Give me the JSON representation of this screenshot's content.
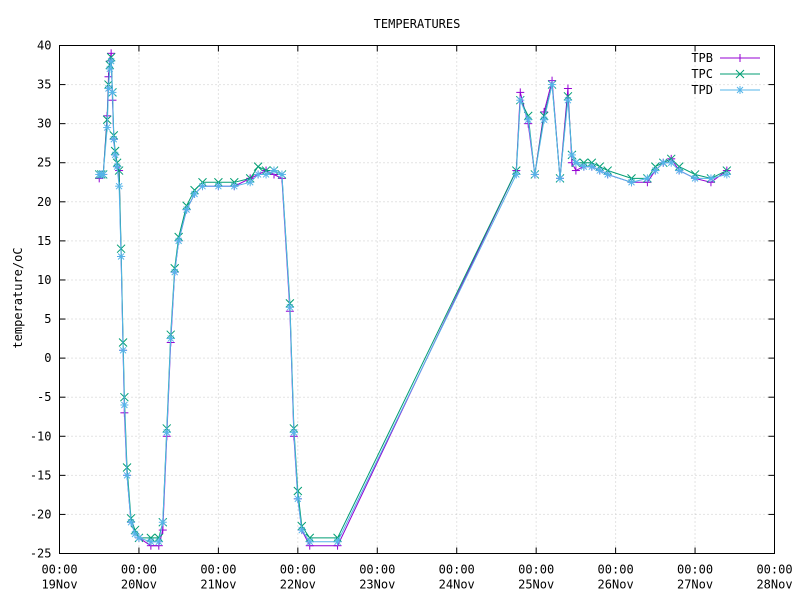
{
  "chart_data": {
    "type": "line",
    "title": "TEMPERATURES",
    "xlabel": "",
    "ylabel": "temperature/oC",
    "xlim": [
      "2000-11-19 00:00",
      "2000-11-28 00:00"
    ],
    "ylim": [
      -25,
      40
    ],
    "x_ticks": [
      {
        "time": "19Nov 00:00",
        "top": "00:00",
        "bottom": "19Nov"
      },
      {
        "time": "20Nov 00:00",
        "top": "00:00",
        "bottom": "20Nov"
      },
      {
        "time": "21Nov 00:00",
        "top": "00:00",
        "bottom": "21Nov"
      },
      {
        "time": "22Nov 00:00",
        "top": "00:00",
        "bottom": "22Nov"
      },
      {
        "time": "23Nov 00:00",
        "top": "00:00",
        "bottom": "23Nov"
      },
      {
        "time": "24Nov 00:00",
        "top": "00:00",
        "bottom": "24Nov"
      },
      {
        "time": "25Nov 00:00",
        "top": "00:00",
        "bottom": "25Nov"
      },
      {
        "time": "26Nov 00:00",
        "top": "00:00",
        "bottom": "26Nov"
      },
      {
        "time": "27Nov 00:00",
        "top": "00:00",
        "bottom": "27Nov"
      },
      {
        "time": "28Nov 00:00",
        "top": "00:00",
        "bottom": "28Nov"
      }
    ],
    "y_ticks": [
      -25,
      -20,
      -15,
      -10,
      -5,
      0,
      5,
      10,
      15,
      20,
      25,
      30,
      35,
      40
    ],
    "grid": true,
    "legend_position": "top-right",
    "series": [
      {
        "name": "TPB",
        "color": "#9400d3",
        "marker": "plus",
        "points": [
          [
            "2000-11-19 12:00",
            23.0
          ],
          [
            "2000-11-19 12:36",
            23.5
          ],
          [
            "2000-11-19 13:12",
            23.5
          ],
          [
            "2000-11-19 14:24",
            31.0
          ],
          [
            "2000-11-19 14:48",
            36.0
          ],
          [
            "2000-11-19 15:12",
            38.0
          ],
          [
            "2000-11-19 15:36",
            39.0
          ],
          [
            "2000-11-19 16:00",
            33.0
          ],
          [
            "2000-11-19 16:24",
            28.0
          ],
          [
            "2000-11-19 16:48",
            26.0
          ],
          [
            "2000-11-19 17:24",
            24.5
          ],
          [
            "2000-11-19 18:00",
            24.0
          ],
          [
            "2000-11-19 18:36",
            13.0
          ],
          [
            "2000-11-19 19:12",
            1.0
          ],
          [
            "2000-11-19 19:36",
            -7.0
          ],
          [
            "2000-11-19 20:24",
            -15.0
          ],
          [
            "2000-11-19 21:36",
            -21.0
          ],
          [
            "2000-11-19 22:48",
            -22.5
          ],
          [
            "2000-11-20 00:00",
            -23.0
          ],
          [
            "2000-11-20 03:36",
            -24.0
          ],
          [
            "2000-11-20 06:00",
            -24.0
          ],
          [
            "2000-11-20 07:12",
            -22.0
          ],
          [
            "2000-11-20 08:24",
            -10.0
          ],
          [
            "2000-11-20 09:36",
            2.0
          ],
          [
            "2000-11-20 10:48",
            11.0
          ],
          [
            "2000-11-20 12:00",
            15.0
          ],
          [
            "2000-11-20 14:24",
            19.0
          ],
          [
            "2000-11-20 16:48",
            21.0
          ],
          [
            "2000-11-20 19:12",
            22.0
          ],
          [
            "2000-11-21 00:00",
            22.0
          ],
          [
            "2000-11-21 04:48",
            22.0
          ],
          [
            "2000-11-21 09:36",
            23.0
          ],
          [
            "2000-11-21 12:00",
            23.5
          ],
          [
            "2000-11-21 14:24",
            24.0
          ],
          [
            "2000-11-21 16:48",
            23.5
          ],
          [
            "2000-11-21 19:12",
            23.0
          ],
          [
            "2000-11-21 21:36",
            6.0
          ],
          [
            "2000-11-21 22:48",
            -10.0
          ],
          [
            "2000-11-22 00:00",
            -18.0
          ],
          [
            "2000-11-22 01:12",
            -22.0
          ],
          [
            "2000-11-22 03:36",
            -24.0
          ],
          [
            "2000-11-22 12:00",
            -24.0
          ],
          [
            "2000-11-24 18:00",
            24.0
          ],
          [
            "2000-11-24 19:12",
            34.0
          ],
          [
            "2000-11-24 21:36",
            30.0
          ],
          [
            "2000-11-24 23:36",
            23.5
          ],
          [
            "2000-11-25 02:24",
            31.5
          ],
          [
            "2000-11-25 04:48",
            35.5
          ],
          [
            "2000-11-25 07:12",
            23.0
          ],
          [
            "2000-11-25 09:36",
            34.5
          ],
          [
            "2000-11-25 10:48",
            25.0
          ],
          [
            "2000-11-25 12:00",
            24.0
          ],
          [
            "2000-11-25 14:24",
            24.5
          ],
          [
            "2000-11-25 16:48",
            24.5
          ],
          [
            "2000-11-25 19:12",
            24.0
          ],
          [
            "2000-11-25 21:36",
            23.5
          ],
          [
            "2000-11-26 04:48",
            22.5
          ],
          [
            "2000-11-26 09:36",
            22.5
          ],
          [
            "2000-11-26 12:00",
            24.0
          ],
          [
            "2000-11-26 14:24",
            25.0
          ],
          [
            "2000-11-26 16:48",
            25.5
          ],
          [
            "2000-11-26 19:12",
            24.0
          ],
          [
            "2000-11-27 00:00",
            23.0
          ],
          [
            "2000-11-27 04:48",
            22.5
          ],
          [
            "2000-11-27 09:36",
            24.0
          ]
        ]
      },
      {
        "name": "TPC",
        "color": "#009e73",
        "marker": "cross",
        "points": [
          [
            "2000-11-19 12:00",
            23.5
          ],
          [
            "2000-11-19 12:36",
            23.5
          ],
          [
            "2000-11-19 13:12",
            23.5
          ],
          [
            "2000-11-19 14:24",
            30.5
          ],
          [
            "2000-11-19 14:48",
            35.0
          ],
          [
            "2000-11-19 15:12",
            37.5
          ],
          [
            "2000-11-19 15:36",
            38.5
          ],
          [
            "2000-11-19 16:00",
            34.0
          ],
          [
            "2000-11-19 16:24",
            28.5
          ],
          [
            "2000-11-19 16:48",
            26.5
          ],
          [
            "2000-11-19 17:24",
            25.0
          ],
          [
            "2000-11-19 18:00",
            24.0
          ],
          [
            "2000-11-19 18:36",
            14.0
          ],
          [
            "2000-11-19 19:12",
            2.0
          ],
          [
            "2000-11-19 19:36",
            -5.0
          ],
          [
            "2000-11-19 20:24",
            -14.0
          ],
          [
            "2000-11-19 21:36",
            -20.5
          ],
          [
            "2000-11-19 22:48",
            -22.0
          ],
          [
            "2000-11-20 00:00",
            -23.0
          ],
          [
            "2000-11-20 03:36",
            -23.0
          ],
          [
            "2000-11-20 06:00",
            -23.0
          ],
          [
            "2000-11-20 07:12",
            -21.0
          ],
          [
            "2000-11-20 08:24",
            -9.0
          ],
          [
            "2000-11-20 09:36",
            3.0
          ],
          [
            "2000-11-20 10:48",
            11.5
          ],
          [
            "2000-11-20 12:00",
            15.5
          ],
          [
            "2000-11-20 14:24",
            19.5
          ],
          [
            "2000-11-20 16:48",
            21.5
          ],
          [
            "2000-11-20 19:12",
            22.5
          ],
          [
            "2000-11-21 00:00",
            22.5
          ],
          [
            "2000-11-21 04:48",
            22.5
          ],
          [
            "2000-11-21 09:36",
            23.0
          ],
          [
            "2000-11-21 12:00",
            24.5
          ],
          [
            "2000-11-21 14:24",
            24.0
          ],
          [
            "2000-11-21 16:48",
            24.0
          ],
          [
            "2000-11-21 19:12",
            23.5
          ],
          [
            "2000-11-21 21:36",
            7.0
          ],
          [
            "2000-11-21 22:48",
            -9.0
          ],
          [
            "2000-11-22 00:00",
            -17.0
          ],
          [
            "2000-11-22 01:12",
            -21.5
          ],
          [
            "2000-11-22 03:36",
            -23.0
          ],
          [
            "2000-11-22 12:00",
            -23.0
          ],
          [
            "2000-11-24 18:00",
            24.0
          ],
          [
            "2000-11-24 19:12",
            33.0
          ],
          [
            "2000-11-24 21:36",
            31.0
          ],
          [
            "2000-11-24 23:36",
            23.5
          ],
          [
            "2000-11-25 02:24",
            31.0
          ],
          [
            "2000-11-25 04:48",
            35.0
          ],
          [
            "2000-11-25 07:12",
            23.0
          ],
          [
            "2000-11-25 09:36",
            33.5
          ],
          [
            "2000-11-25 10:48",
            26.0
          ],
          [
            "2000-11-25 12:00",
            25.0
          ],
          [
            "2000-11-25 14:24",
            25.0
          ],
          [
            "2000-11-25 16:48",
            25.0
          ],
          [
            "2000-11-25 19:12",
            24.5
          ],
          [
            "2000-11-25 21:36",
            24.0
          ],
          [
            "2000-11-26 04:48",
            23.0
          ],
          [
            "2000-11-26 09:36",
            23.0
          ],
          [
            "2000-11-26 12:00",
            24.5
          ],
          [
            "2000-11-26 14:24",
            25.0
          ],
          [
            "2000-11-26 16:48",
            25.5
          ],
          [
            "2000-11-26 19:12",
            24.5
          ],
          [
            "2000-11-27 00:00",
            23.5
          ],
          [
            "2000-11-27 04:48",
            23.0
          ],
          [
            "2000-11-27 09:36",
            24.0
          ]
        ]
      },
      {
        "name": "TPD",
        "color": "#56b4e9",
        "marker": "star",
        "points": [
          [
            "2000-11-19 12:00",
            23.5
          ],
          [
            "2000-11-19 12:36",
            23.5
          ],
          [
            "2000-11-19 13:12",
            23.5
          ],
          [
            "2000-11-19 14:24",
            29.5
          ],
          [
            "2000-11-19 14:48",
            34.5
          ],
          [
            "2000-11-19 15:12",
            37.0
          ],
          [
            "2000-11-19 15:36",
            38.0
          ],
          [
            "2000-11-19 16:00",
            34.0
          ],
          [
            "2000-11-19 16:24",
            28.0
          ],
          [
            "2000-11-19 16:48",
            26.0
          ],
          [
            "2000-11-19 17:24",
            24.5
          ],
          [
            "2000-11-19 18:00",
            22.0
          ],
          [
            "2000-11-19 18:36",
            13.0
          ],
          [
            "2000-11-19 19:12",
            1.0
          ],
          [
            "2000-11-19 19:36",
            -6.0
          ],
          [
            "2000-11-19 20:24",
            -15.0
          ],
          [
            "2000-11-19 21:36",
            -21.0
          ],
          [
            "2000-11-19 22:48",
            -22.5
          ],
          [
            "2000-11-20 00:00",
            -23.0
          ],
          [
            "2000-11-20 03:36",
            -23.5
          ],
          [
            "2000-11-20 06:00",
            -23.5
          ],
          [
            "2000-11-20 07:12",
            -21.0
          ],
          [
            "2000-11-20 08:24",
            -9.5
          ],
          [
            "2000-11-20 09:36",
            2.5
          ],
          [
            "2000-11-20 10:48",
            11.0
          ],
          [
            "2000-11-20 12:00",
            15.0
          ],
          [
            "2000-11-20 14:24",
            19.0
          ],
          [
            "2000-11-20 16:48",
            21.0
          ],
          [
            "2000-11-20 19:12",
            22.0
          ],
          [
            "2000-11-21 00:00",
            22.0
          ],
          [
            "2000-11-21 04:48",
            22.0
          ],
          [
            "2000-11-21 09:36",
            22.5
          ],
          [
            "2000-11-21 12:00",
            23.5
          ],
          [
            "2000-11-21 14:24",
            23.5
          ],
          [
            "2000-11-21 16:48",
            24.0
          ],
          [
            "2000-11-21 19:12",
            23.5
          ],
          [
            "2000-11-21 21:36",
            6.5
          ],
          [
            "2000-11-21 22:48",
            -9.5
          ],
          [
            "2000-11-22 00:00",
            -18.0
          ],
          [
            "2000-11-22 01:12",
            -22.0
          ],
          [
            "2000-11-22 03:36",
            -23.5
          ],
          [
            "2000-11-22 12:00",
            -23.5
          ],
          [
            "2000-11-24 18:00",
            23.5
          ],
          [
            "2000-11-24 19:12",
            33.0
          ],
          [
            "2000-11-24 21:36",
            30.5
          ],
          [
            "2000-11-24 23:36",
            23.5
          ],
          [
            "2000-11-25 02:24",
            30.5
          ],
          [
            "2000-11-25 04:48",
            35.0
          ],
          [
            "2000-11-25 07:12",
            23.0
          ],
          [
            "2000-11-25 09:36",
            33.0
          ],
          [
            "2000-11-25 10:48",
            26.0
          ],
          [
            "2000-11-25 12:00",
            25.0
          ],
          [
            "2000-11-25 14:24",
            24.5
          ],
          [
            "2000-11-25 16:48",
            24.5
          ],
          [
            "2000-11-25 19:12",
            24.0
          ],
          [
            "2000-11-25 21:36",
            23.5
          ],
          [
            "2000-11-26 04:48",
            22.5
          ],
          [
            "2000-11-26 09:36",
            23.0
          ],
          [
            "2000-11-26 12:00",
            24.0
          ],
          [
            "2000-11-26 14:24",
            25.0
          ],
          [
            "2000-11-26 16:48",
            25.0
          ],
          [
            "2000-11-26 19:12",
            24.0
          ],
          [
            "2000-11-27 00:00",
            23.0
          ],
          [
            "2000-11-27 04:48",
            23.0
          ],
          [
            "2000-11-27 09:36",
            23.5
          ]
        ]
      }
    ]
  }
}
